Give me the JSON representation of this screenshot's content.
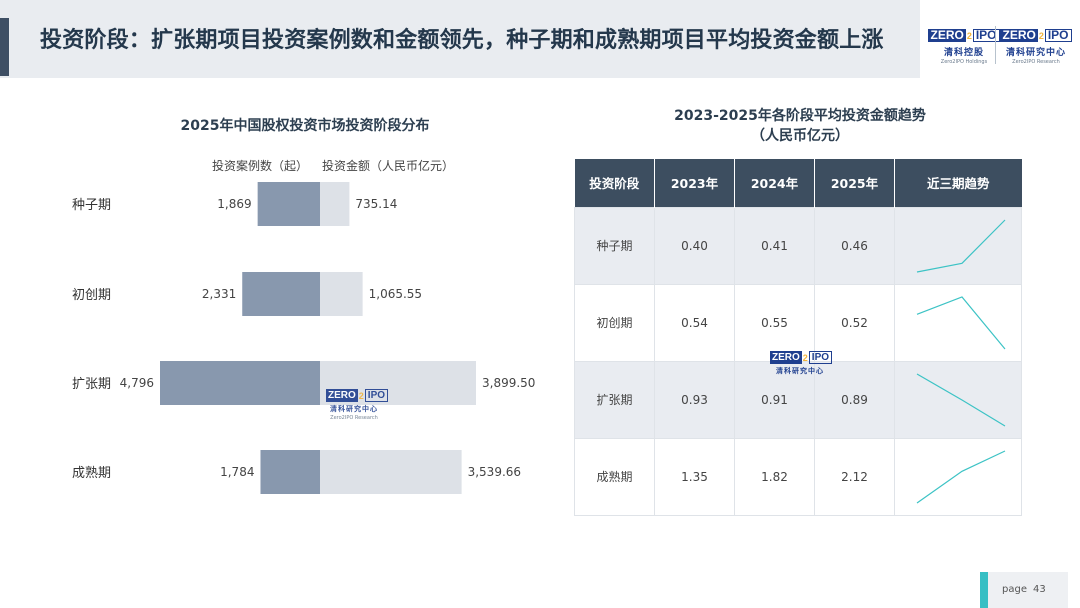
{
  "title": "投资阶段：扩张期项目投资案例数和金额领先，种子期和成熟期项目平均投资金额上涨",
  "logos": [
    {
      "brand_left": "ZERO",
      "brand_mark": "2",
      "brand_right": "IPO",
      "cn": "清科控股",
      "en": "Zero2IPO Holdings"
    },
    {
      "brand_left": "ZERO",
      "brand_mark": "2",
      "brand_right": "IPO",
      "cn": "清科研究中心",
      "en": "Zero2IPO Research"
    }
  ],
  "watermarks": [
    {
      "brand_left": "ZERO",
      "brand_mark": "2",
      "brand_right": "IPO",
      "cn": "清科研究中心"
    },
    {
      "brand_left": "ZERO",
      "brand_mark": "2",
      "brand_right": "IPO",
      "cn": "清科研究中心",
      "en": "Zero2IPO Research"
    }
  ],
  "colors": {
    "count_bar": "#8898ae",
    "amount_bar": "#dde1e7",
    "header_bg": "#3d4e60",
    "trend_line": "#3cc3c5",
    "accent": "#36bfc4"
  },
  "chart_data": [
    {
      "type": "bar",
      "title": "2025年中国股权投资市场投资阶段分布",
      "layout": "butterfly",
      "categories": [
        "种子期",
        "初创期",
        "扩张期",
        "成熟期"
      ],
      "series": [
        {
          "name": "投资案例数（起）",
          "values": [
            1869,
            2331,
            4796,
            1784
          ],
          "labels": [
            "1,869",
            "2,331",
            "4,796",
            "1,784"
          ]
        },
        {
          "name": "投资金额（人民币亿元）",
          "values": [
            735.14,
            1065.55,
            3899.5,
            3539.66
          ],
          "labels": [
            "735.14",
            "1,065.55",
            "3,899.50",
            "3,539.66"
          ]
        }
      ]
    },
    {
      "type": "table",
      "title": "2023-2025年各阶段平均投资金额趋势",
      "subtitle": "（人民币亿元）",
      "columns": [
        "投资阶段",
        "2023年",
        "2024年",
        "2025年",
        "近三期趋势"
      ],
      "rows": [
        {
          "stage": "种子期",
          "values": [
            0.4,
            0.41,
            0.46
          ],
          "labels": [
            "0.40",
            "0.41",
            "0.46"
          ]
        },
        {
          "stage": "初创期",
          "values": [
            0.54,
            0.55,
            0.52
          ],
          "labels": [
            "0.54",
            "0.55",
            "0.52"
          ]
        },
        {
          "stage": "扩张期",
          "values": [
            0.93,
            0.91,
            0.89
          ],
          "labels": [
            "0.93",
            "0.91",
            "0.89"
          ]
        },
        {
          "stage": "成熟期",
          "values": [
            1.35,
            1.82,
            2.12
          ],
          "labels": [
            "1.35",
            "1.82",
            "2.12"
          ]
        }
      ]
    }
  ],
  "footer": {
    "page_label": "page",
    "page_number": "43"
  }
}
